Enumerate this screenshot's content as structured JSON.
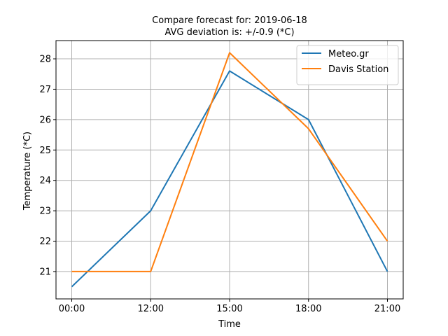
{
  "chart_data": {
    "type": "line",
    "title": "Compare forecast for: 2019-06-18",
    "subtitle": "AVG deviation is: +/-0.9 (*C)",
    "xlabel": "Time",
    "ylabel": "Temperature (*C)",
    "categories": [
      "00:00",
      "12:00",
      "15:00",
      "18:00",
      "21:00"
    ],
    "ylim": [
      20.1,
      28.6
    ],
    "yticks": [
      21,
      22,
      23,
      24,
      25,
      26,
      27,
      28
    ],
    "grid": true,
    "legend_position": "top-right",
    "series": [
      {
        "name": "Meteo.gr",
        "color": "#1f77b4",
        "values": [
          20.5,
          23.0,
          27.6,
          26.0,
          21.0
        ]
      },
      {
        "name": "Davis Station",
        "color": "#ff7f0e",
        "values": [
          21.0,
          21.0,
          28.2,
          25.7,
          22.0
        ]
      }
    ]
  }
}
